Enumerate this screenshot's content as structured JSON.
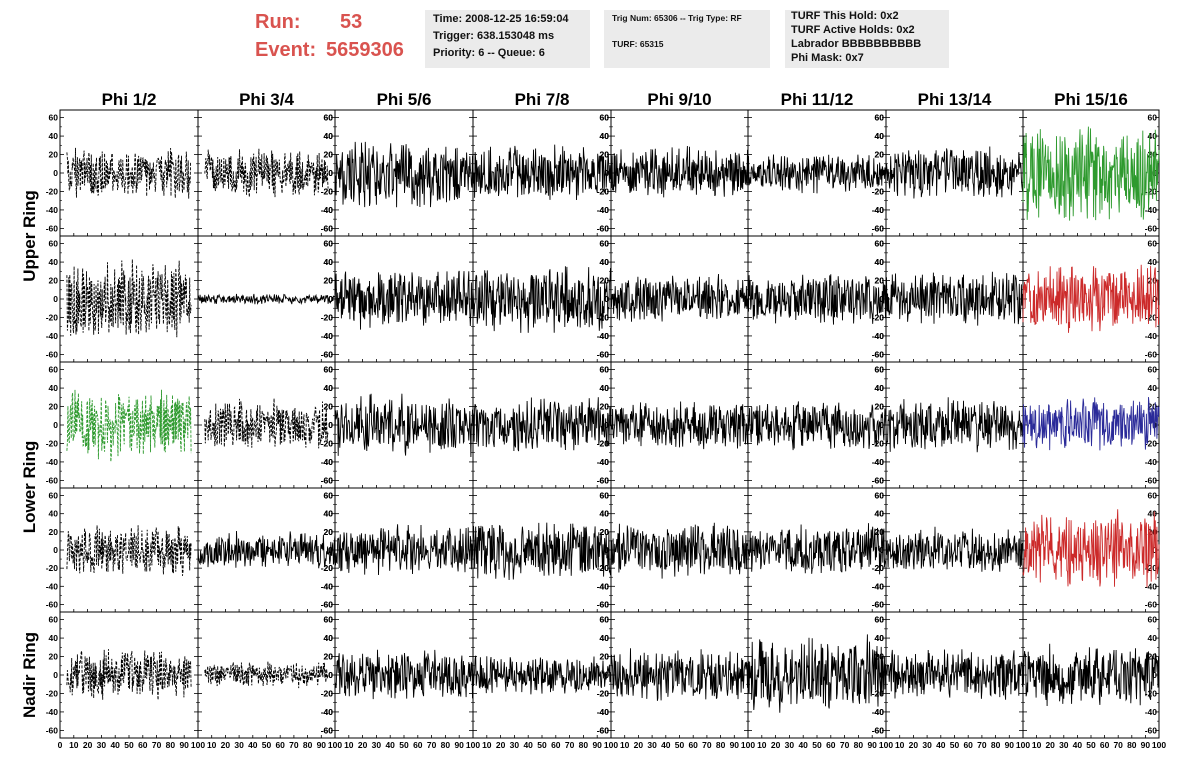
{
  "header": {
    "run_label": "Run:",
    "run_value": "53",
    "event_label": "Event:",
    "event_value": "5659306",
    "time": "Time: 2008-12-25 16:59:04",
    "trigger": "Trigger: 638.153048 ms",
    "priority": "Priority: 6 -- Queue: 6",
    "trig_num": "Trig Num: 65306 -- Trig Type: RF",
    "turf": "TURF: 65315",
    "turf_hold": "TURF This Hold: 0x2",
    "turf_active": "TURF Active Holds: 0x2",
    "labrador": "Labrador BBBBBBBBBB",
    "phi_mask": "Phi Mask: 0x7",
    "accent_color": "#d9534f",
    "box_color": "#ebebeb"
  },
  "chart_data": {
    "type": "line",
    "grid": false,
    "columns": [
      "Phi 1/2",
      "Phi 3/4",
      "Phi 5/6",
      "Phi 7/8",
      "Phi 9/10",
      "Phi 11/12",
      "Phi 13/14",
      "Phi 15/16"
    ],
    "ring_labels": [
      "Upper Ring",
      "Lower Ring",
      "Nadir Ring"
    ],
    "ylim": [
      -65,
      65
    ],
    "xlim": [
      0,
      100
    ],
    "y_ticks": [
      60,
      40,
      20,
      0,
      -20,
      -40,
      -60
    ],
    "x_ticks": [
      0,
      10,
      20,
      30,
      40,
      50,
      60,
      70,
      80,
      90,
      100
    ],
    "colors": {
      "black": "#000000",
      "green": "#2e9a2e",
      "red": "#cc2a2a",
      "blue": "#2a2a99"
    },
    "panels": [
      [
        {
          "color": "black",
          "dashed": true,
          "amp": 30,
          "band": [
            5,
            95
          ]
        },
        {
          "color": "black",
          "dashed": true,
          "amp": 28,
          "band": [
            5,
            95
          ]
        },
        {
          "color": "black",
          "dashed": false,
          "amp": 40,
          "band": [
            0,
            100
          ]
        },
        {
          "color": "black",
          "dashed": false,
          "amp": 32,
          "band": [
            0,
            100
          ]
        },
        {
          "color": "black",
          "dashed": false,
          "amp": 30,
          "band": [
            0,
            100
          ]
        },
        {
          "color": "black",
          "dashed": false,
          "amp": 24,
          "band": [
            0,
            100
          ]
        },
        {
          "color": "black",
          "dashed": false,
          "amp": 30,
          "band": [
            0,
            100
          ]
        },
        {
          "color": "green",
          "dashed": false,
          "amp": 55,
          "band": [
            0,
            100
          ]
        }
      ],
      [
        {
          "color": "black",
          "dashed": true,
          "amp": 45,
          "band": [
            5,
            95
          ]
        },
        {
          "color": "black",
          "dashed": false,
          "amp": 6,
          "band": [
            0,
            100
          ]
        },
        {
          "color": "black",
          "dashed": false,
          "amp": 35,
          "band": [
            0,
            100
          ]
        },
        {
          "color": "black",
          "dashed": false,
          "amp": 40,
          "band": [
            0,
            100
          ]
        },
        {
          "color": "black",
          "dashed": false,
          "amp": 28,
          "band": [
            0,
            100
          ]
        },
        {
          "color": "black",
          "dashed": false,
          "amp": 30,
          "band": [
            0,
            100
          ]
        },
        {
          "color": "black",
          "dashed": false,
          "amp": 32,
          "band": [
            0,
            100
          ]
        },
        {
          "color": "red",
          "dashed": false,
          "amp": 42,
          "band": [
            0,
            100
          ]
        }
      ],
      [
        {
          "color": "green",
          "dashed": true,
          "amp": 40,
          "band": [
            5,
            95
          ]
        },
        {
          "color": "black",
          "dashed": true,
          "amp": 30,
          "band": [
            5,
            95
          ]
        },
        {
          "color": "black",
          "dashed": false,
          "amp": 35,
          "band": [
            0,
            100
          ]
        },
        {
          "color": "black",
          "dashed": false,
          "amp": 32,
          "band": [
            0,
            100
          ]
        },
        {
          "color": "black",
          "dashed": false,
          "amp": 28,
          "band": [
            0,
            100
          ]
        },
        {
          "color": "black",
          "dashed": false,
          "amp": 28,
          "band": [
            0,
            100
          ]
        },
        {
          "color": "black",
          "dashed": false,
          "amp": 32,
          "band": [
            0,
            100
          ]
        },
        {
          "color": "blue",
          "dashed": false,
          "amp": 32,
          "band": [
            0,
            100
          ]
        }
      ],
      [
        {
          "color": "black",
          "dashed": true,
          "amp": 30,
          "band": [
            5,
            95
          ]
        },
        {
          "color": "black",
          "dashed": false,
          "amp": 22,
          "band": [
            0,
            100
          ]
        },
        {
          "color": "black",
          "dashed": false,
          "amp": 30,
          "band": [
            0,
            100
          ]
        },
        {
          "color": "black",
          "dashed": false,
          "amp": 35,
          "band": [
            0,
            100
          ]
        },
        {
          "color": "black",
          "dashed": false,
          "amp": 32,
          "band": [
            0,
            100
          ]
        },
        {
          "color": "black",
          "dashed": false,
          "amp": 30,
          "band": [
            0,
            100
          ]
        },
        {
          "color": "black",
          "dashed": false,
          "amp": 28,
          "band": [
            0,
            100
          ]
        },
        {
          "color": "red",
          "dashed": false,
          "amp": 45,
          "band": [
            0,
            100
          ]
        }
      ],
      [
        {
          "color": "black",
          "dashed": true,
          "amp": 30,
          "band": [
            5,
            95
          ]
        },
        {
          "color": "black",
          "dashed": true,
          "amp": 15,
          "band": [
            5,
            95
          ]
        },
        {
          "color": "black",
          "dashed": false,
          "amp": 30,
          "band": [
            0,
            100
          ]
        },
        {
          "color": "black",
          "dashed": false,
          "amp": 25,
          "band": [
            0,
            100
          ]
        },
        {
          "color": "black",
          "dashed": false,
          "amp": 30,
          "band": [
            0,
            100
          ]
        },
        {
          "color": "black",
          "dashed": false,
          "amp": 45,
          "band": [
            0,
            100
          ]
        },
        {
          "color": "black",
          "dashed": false,
          "amp": 30,
          "band": [
            0,
            100
          ]
        },
        {
          "color": "black",
          "dashed": false,
          "amp": 35,
          "band": [
            0,
            100
          ]
        }
      ]
    ]
  }
}
